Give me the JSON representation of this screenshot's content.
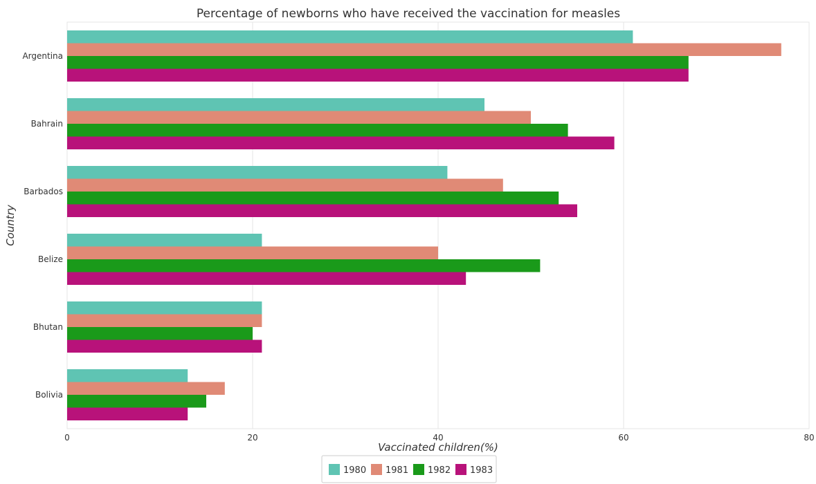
{
  "chart_data": {
    "type": "bar",
    "orientation": "horizontal",
    "title": "Percentage of newborns who have received the vaccination for measles",
    "xlabel": "Vaccinated children(%)",
    "ylabel": "Country",
    "xlim": [
      0,
      80
    ],
    "xticks": [
      "0",
      "20",
      "40",
      "60",
      "80"
    ],
    "grid": true,
    "legend_position": "bottom-center",
    "categories": [
      "Argentina",
      "Bahrain",
      "Barbados",
      "Belize",
      "Bhutan",
      "Bolivia"
    ],
    "series": [
      {
        "name": "1980",
        "color": "#5fc4b3",
        "values": [
          61,
          45,
          41,
          21,
          21,
          13
        ]
      },
      {
        "name": "1981",
        "color": "#e08a76",
        "values": [
          77,
          50,
          47,
          40,
          21,
          17
        ]
      },
      {
        "name": "1982",
        "color": "#1a9a1a",
        "values": [
          67,
          54,
          53,
          51,
          20,
          15
        ]
      },
      {
        "name": "1983",
        "color": "#b8127a",
        "values": [
          67,
          59,
          55,
          43,
          21,
          13
        ]
      }
    ]
  }
}
